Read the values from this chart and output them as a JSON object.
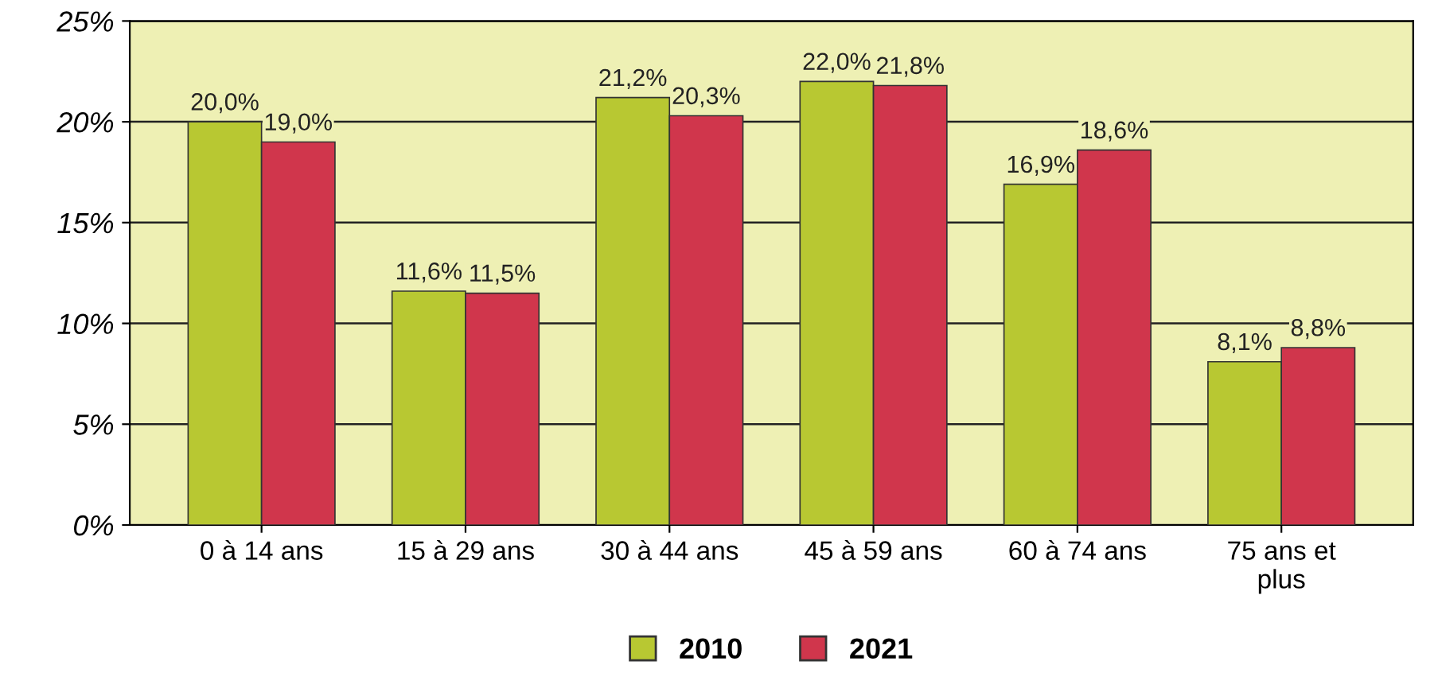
{
  "chart_data": {
    "type": "bar",
    "categories": [
      "0 à 14 ans",
      "15 à 29 ans",
      "30 à 44 ans",
      "45 à 59 ans",
      "60 à 74 ans",
      "75 ans et\nplus"
    ],
    "series": [
      {
        "name": "2010",
        "color": "#b8c832",
        "values": [
          20.0,
          11.6,
          21.2,
          22.0,
          16.9,
          8.1
        ],
        "value_labels": [
          "20,0%",
          "11,6%",
          "21,2%",
          "22,0%",
          "16,9%",
          "8,1%"
        ]
      },
      {
        "name": "2021",
        "color": "#d0364c",
        "values": [
          19.0,
          11.5,
          20.3,
          21.8,
          18.6,
          8.8
        ],
        "value_labels": [
          "19,0%",
          "11,5%",
          "20,3%",
          "21,8%",
          "18,6%",
          "8,8%"
        ]
      }
    ],
    "ylim": [
      0,
      25
    ],
    "yticks": [
      {
        "value": 0,
        "label": "0%"
      },
      {
        "value": 5,
        "label": "5%"
      },
      {
        "value": 10,
        "label": "10%"
      },
      {
        "value": 15,
        "label": "15%"
      },
      {
        "value": 20,
        "label": "20%"
      },
      {
        "value": 25,
        "label": "25%"
      }
    ],
    "grid": "y",
    "legend": "bottom"
  }
}
